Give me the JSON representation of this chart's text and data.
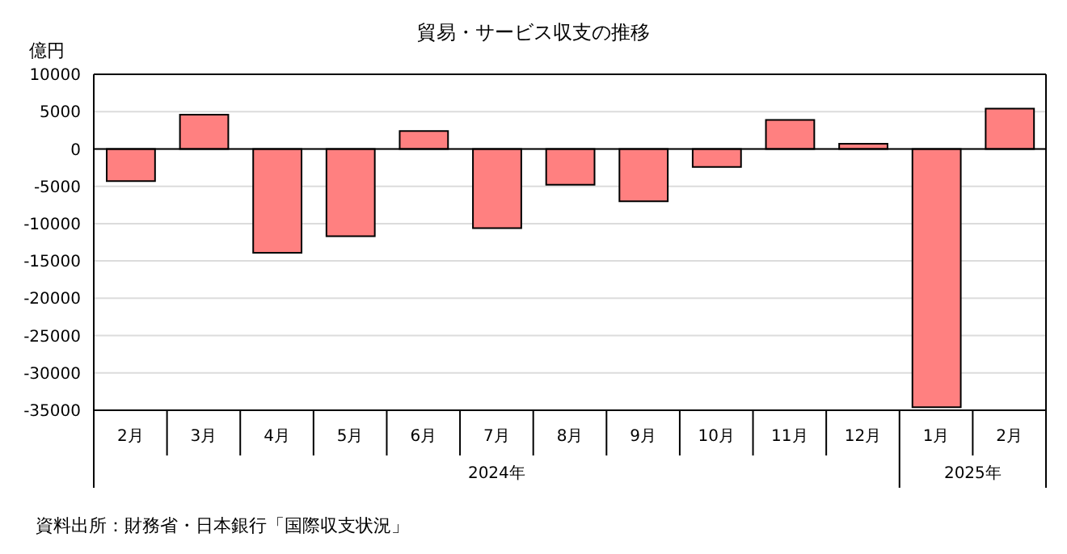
{
  "chart_data": {
    "type": "bar",
    "title": "貿易・サービス収支の推移",
    "ylabel": "億円",
    "categories": [
      "2月",
      "3月",
      "4月",
      "5月",
      "6月",
      "7月",
      "8月",
      "9月",
      "10月",
      "11月",
      "12月",
      "1月",
      "2月"
    ],
    "values": [
      -4300,
      4600,
      -13900,
      -11700,
      2400,
      -10600,
      -4800,
      -7000,
      -2400,
      3900,
      700,
      -34600,
      5400
    ],
    "color": "#ff8080",
    "ylim": [
      -35000,
      10000
    ],
    "yticks": [
      -35000,
      -30000,
      -25000,
      -20000,
      -15000,
      -10000,
      -5000,
      0,
      5000,
      10000
    ],
    "grid": "y",
    "annotations": [
      "2024年",
      "2025年",
      "資料出所：財務省・日本銀行「国際収支状況」"
    ]
  }
}
